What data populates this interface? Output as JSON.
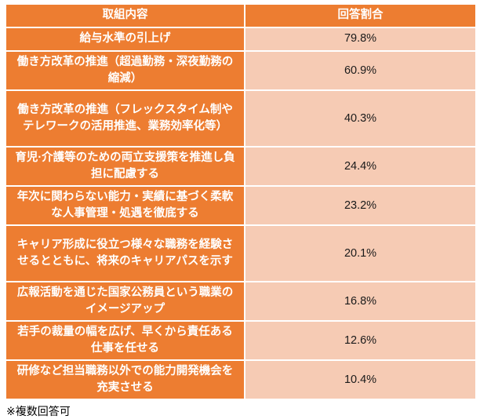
{
  "table": {
    "headers": {
      "left": "取組内容",
      "right": "回答割合"
    },
    "rows": [
      {
        "label": "給与水準の引上げ",
        "value": "79.8%"
      },
      {
        "label": "働き方改革の推進（超過勤務・深夜勤務の縮減）",
        "value": "60.9%"
      },
      {
        "label": "働き方改革の推進（フレックスタイム制やテレワークの活用推進、業務効率化等）",
        "value": "40.3%"
      },
      {
        "label": "育児·介護等のための両立支援策を推進し負担に配慮する",
        "value": "24.4%"
      },
      {
        "label": "年次に関わらない能力・実績に基づく柔軟な人事管理・処遇を徹底する",
        "value": "23.2%"
      },
      {
        "label": "キャリア形成に役立つ様々な職務を経験させるとともに、将来のキャリアパスを示す",
        "value": "20.1%"
      },
      {
        "label": "広報活動を通じた国家公務員という職業のイメージアップ",
        "value": "16.8%"
      },
      {
        "label": "若手の裁量の幅を広げ、早くから責任ある仕事を任せる",
        "value": "12.6%"
      },
      {
        "label": "研修など担当職務以外での能力開発機会を充実させる",
        "value": "10.4%"
      }
    ]
  },
  "footnote": "※複数回答可",
  "colors": {
    "header_orange": "#ED7D31",
    "value_peach": "#F6CBB4",
    "border_white": "#FFFFFF"
  }
}
